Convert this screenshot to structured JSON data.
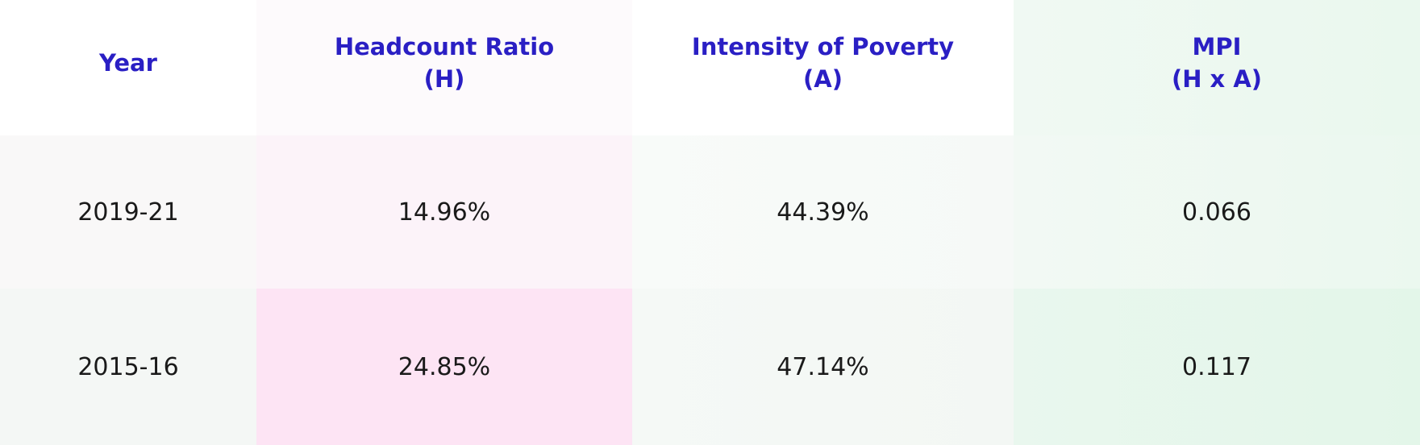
{
  "table": {
    "headers": [
      {
        "line1": "Year",
        "line2": ""
      },
      {
        "line1": "Headcount Ratio",
        "line2": "(H)"
      },
      {
        "line1": "Intensity of Poverty",
        "line2": "(A)"
      },
      {
        "line1": "MPI",
        "line2": "(H x A)"
      }
    ],
    "rows": [
      {
        "year": "2019-21",
        "headcount_ratio": "14.96%",
        "intensity": "44.39%",
        "mpi": "0.066"
      },
      {
        "year": "2015-16",
        "headcount_ratio": "24.85%",
        "intensity": "47.14%",
        "mpi": "0.117"
      }
    ]
  },
  "colors": {
    "header_text": "#2a1fc4",
    "body_text": "#1a1a1a",
    "headcount_highlight": "#fde4f4",
    "mpi_highlight": "#e3f6e9"
  }
}
